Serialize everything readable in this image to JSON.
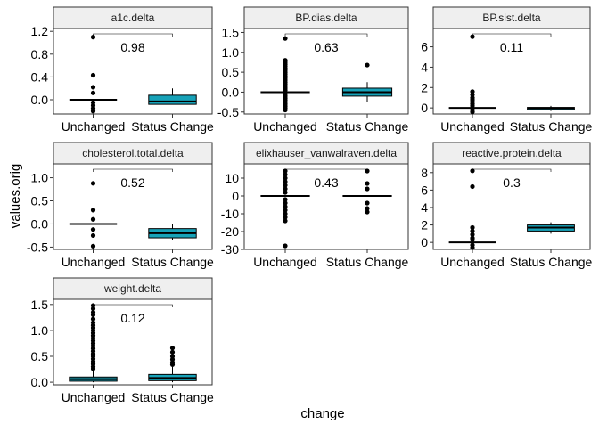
{
  "figure": {
    "xlabel": "change",
    "ylabel": "values.orig"
  },
  "chart_data": [
    {
      "type": "box",
      "title": "a1c.delta",
      "categories": [
        "Unchanged",
        "Status Change"
      ],
      "ylim": [
        -0.25,
        1.25
      ],
      "yticks": [
        0.0,
        0.4,
        0.8,
        1.2
      ],
      "ytick_labels": [
        "0.0",
        "0.4",
        "0.8",
        "1.2"
      ],
      "p_value": "0.98",
      "boxes": [
        {
          "q1": 0.0,
          "median": 0.0,
          "q3": 0.0,
          "whisker_low": 0.0,
          "whisker_high": 0.0,
          "outliers": [
            1.1,
            0.43,
            0.22,
            0.12,
            -0.05,
            -0.1,
            -0.15,
            -0.2
          ]
        },
        {
          "q1": -0.08,
          "median": -0.03,
          "q3": 0.08,
          "whisker_low": -0.08,
          "whisker_high": 0.2,
          "outliers": []
        }
      ]
    },
    {
      "type": "box",
      "title": "BP.dias.delta",
      "categories": [
        "Unchanged",
        "Status Change"
      ],
      "ylim": [
        -0.55,
        1.6
      ],
      "yticks": [
        -0.5,
        0.0,
        0.5,
        1.0,
        1.5
      ],
      "ytick_labels": [
        "-0.5",
        "0.0",
        "0.5",
        "1.0",
        "1.5"
      ],
      "p_value": "0.63",
      "boxes": [
        {
          "q1": 0.0,
          "median": 0.0,
          "q3": 0.0,
          "whisker_low": 0.0,
          "whisker_high": 0.0,
          "outliers": [
            1.35,
            0.8,
            0.75,
            0.7,
            0.65,
            0.6,
            0.55,
            0.5,
            0.45,
            0.4,
            0.35,
            0.3,
            0.25,
            0.2,
            0.15,
            0.1,
            0.05,
            -0.05,
            -0.1,
            -0.15,
            -0.2,
            -0.25,
            -0.3,
            -0.35,
            -0.4,
            -0.45
          ]
        },
        {
          "q1": -0.1,
          "median": 0.0,
          "q3": 0.1,
          "whisker_low": -0.25,
          "whisker_high": 0.25,
          "outliers": [
            0.68
          ]
        }
      ]
    },
    {
      "type": "box",
      "title": "BP.sist.delta",
      "categories": [
        "Unchanged",
        "Status Change"
      ],
      "ylim": [
        -0.6,
        7.8
      ],
      "yticks": [
        0,
        2,
        4,
        6
      ],
      "ytick_labels": [
        "0",
        "2",
        "4",
        "6"
      ],
      "p_value": "0.11",
      "boxes": [
        {
          "q1": 0.0,
          "median": 0.0,
          "q3": 0.0,
          "whisker_low": 0.0,
          "whisker_high": 0.0,
          "outliers": [
            7.0,
            1.6,
            1.3,
            1.0,
            0.8,
            0.6,
            0.4,
            0.2,
            -0.2,
            -0.4
          ]
        },
        {
          "q1": -0.2,
          "median": -0.05,
          "q3": 0.05,
          "whisker_low": -0.3,
          "whisker_high": 0.2,
          "outliers": []
        }
      ]
    },
    {
      "type": "box",
      "title": "cholesterol.total.delta",
      "categories": [
        "Unchanged",
        "Status Change"
      ],
      "ylim": [
        -0.55,
        1.3
      ],
      "yticks": [
        -0.5,
        0.0,
        0.5,
        1.0
      ],
      "ytick_labels": [
        "-0.5",
        "0.0",
        "0.5",
        "1.0"
      ],
      "p_value": "0.52",
      "boxes": [
        {
          "q1": 0.0,
          "median": 0.0,
          "q3": 0.0,
          "whisker_low": 0.0,
          "whisker_high": 0.0,
          "outliers": [
            0.88,
            0.3,
            0.1,
            -0.12,
            -0.25,
            -0.48
          ]
        },
        {
          "q1": -0.3,
          "median": -0.2,
          "q3": -0.1,
          "whisker_low": -0.35,
          "whisker_high": 0.0,
          "outliers": []
        }
      ]
    },
    {
      "type": "box",
      "title": "elixhauser_vanwalraven.delta",
      "categories": [
        "Unchanged",
        "Status Change"
      ],
      "ylim": [
        -30,
        18
      ],
      "yticks": [
        -30,
        -20,
        -10,
        0,
        10
      ],
      "ytick_labels": [
        "-30",
        "-20",
        "-10",
        "0",
        "10"
      ],
      "p_value": "0.43",
      "boxes": [
        {
          "q1": 0.0,
          "median": 0.0,
          "q3": 0.0,
          "whisker_low": 0.0,
          "whisker_high": 0.0,
          "outliers": [
            14,
            12,
            10,
            8,
            6,
            4,
            2,
            -2,
            -4,
            -6,
            -8,
            -10,
            -12,
            -14,
            -28
          ]
        },
        {
          "q1": 0.0,
          "median": 0.0,
          "q3": 0.0,
          "whisker_low": 0.0,
          "whisker_high": 0.0,
          "outliers": [
            14,
            7,
            4,
            -4,
            -7,
            -9
          ]
        }
      ]
    },
    {
      "type": "box",
      "title": "reactive.protein.delta",
      "categories": [
        "Unchanged",
        "Status Change"
      ],
      "ylim": [
        -0.8,
        9.0
      ],
      "yticks": [
        0,
        2,
        4,
        6,
        8
      ],
      "ytick_labels": [
        "0",
        "2",
        "4",
        "6",
        "8"
      ],
      "p_value": "0.3",
      "boxes": [
        {
          "q1": 0.0,
          "median": 0.0,
          "q3": 0.0,
          "whisker_low": 0.0,
          "whisker_high": 0.0,
          "outliers": [
            8.2,
            6.4,
            1.7,
            1.3,
            0.9,
            0.5,
            0.3,
            -0.3,
            -0.6
          ]
        },
        {
          "q1": 1.3,
          "median": 1.7,
          "q3": 2.0,
          "whisker_low": 1.0,
          "whisker_high": 2.3,
          "outliers": []
        }
      ]
    },
    {
      "type": "box",
      "title": "weight.delta",
      "categories": [
        "Unchanged",
        "Status Change"
      ],
      "ylim": [
        -0.05,
        1.6
      ],
      "yticks": [
        0.0,
        0.5,
        1.0,
        1.5
      ],
      "ytick_labels": [
        "0.0",
        "0.5",
        "1.0",
        "1.5"
      ],
      "p_value": "0.12",
      "boxes": [
        {
          "q1": 0.02,
          "median": 0.06,
          "q3": 0.1,
          "whisker_low": 0.0,
          "whisker_high": 0.22,
          "outliers": [
            1.48,
            1.42,
            1.35,
            1.3,
            1.22,
            1.15,
            1.1,
            1.05,
            1.0,
            0.95,
            0.9,
            0.85,
            0.8,
            0.75,
            0.7,
            0.65,
            0.6,
            0.55,
            0.5,
            0.45,
            0.4,
            0.35,
            0.3,
            0.26
          ]
        },
        {
          "q1": 0.03,
          "median": 0.08,
          "q3": 0.15,
          "whisker_low": 0.0,
          "whisker_high": 0.3,
          "outliers": [
            0.66,
            0.58,
            0.5,
            0.44,
            0.38,
            0.34
          ]
        }
      ]
    }
  ],
  "colors": {
    "box_fill": "#17a2b8",
    "strip_fill": "#efefef",
    "frame": "#333333",
    "text": "#000000"
  }
}
